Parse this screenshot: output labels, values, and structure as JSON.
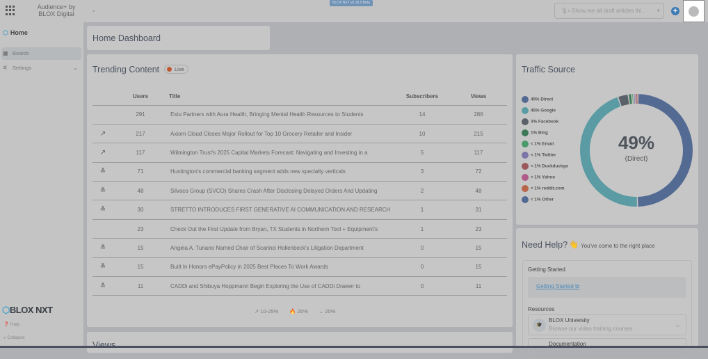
{
  "topbar": {
    "brand": "Audience+ by BLOX Digital",
    "version_badge": "BLOX NXT v0.16.0 Beta",
    "search_placeholder": "Show me all draft articles thi..."
  },
  "sidebar": {
    "home": "Home",
    "items": [
      {
        "label": "Boards",
        "icon": "boards-icon",
        "active": true
      },
      {
        "label": "Settings",
        "icon": "settings-icon"
      }
    ],
    "logo": "BLOX NXT",
    "help": "Help",
    "collapse": "Collapse"
  },
  "page_title": "Home Dashboard",
  "trending": {
    "title": "Trending Content",
    "live": "Live",
    "columns": [
      "",
      "Users",
      "Title",
      "Subscribers",
      "Views"
    ],
    "rows": [
      {
        "trend": "",
        "users": "291",
        "title": "Estu Partners with Aura Health, Bringing Mental Health Resources to Students",
        "subscribers": "14",
        "views": "286"
      },
      {
        "trend": "trending-up",
        "users": "217",
        "title": "Axiom Cloud Closes Major Rollout for Top 10 Grocery Retailer and Insider",
        "subscribers": "10",
        "views": "215"
      },
      {
        "trend": "trending-up",
        "users": "117",
        "title": "Wilmington Trust's 2025 Capital Markets Forecast: Navigating and Investing in a",
        "subscribers": "5",
        "views": "117"
      },
      {
        "trend": "trending-down",
        "users": "71",
        "title": "Huntington's commercial banking segment adds new specialty verticals",
        "subscribers": "3",
        "views": "72"
      },
      {
        "trend": "trending-down",
        "users": "48",
        "title": "Silvaco Group (SVCO) Shares Crash After Disclosing Delayed Orders And Updating",
        "subscribers": "2",
        "views": "48"
      },
      {
        "trend": "trending-down",
        "users": "30",
        "title": "STRETTO INTRODUCES FIRST GENERATIVE AI COMMUNICATION AND RESEARCH",
        "subscribers": "1",
        "views": "31"
      },
      {
        "trend": "",
        "users": "23",
        "title": "Check Out the First Update from Bryan, TX Students in Northern Tool + Equipment's",
        "subscribers": "1",
        "views": "23"
      },
      {
        "trend": "trending-down",
        "users": "15",
        "title": "Angela A. Turiano Named Chair of Scarinci Hollenbeck's Litigation Department",
        "subscribers": "0",
        "views": "15"
      },
      {
        "trend": "trending-down",
        "users": "15",
        "title": "Built In Honors ePayPolicy in 2025 Best Places To Work Awards",
        "subscribers": "0",
        "views": "15"
      },
      {
        "trend": "trending-down",
        "users": "11",
        "title": "CADDi and Shibuya Hoppmann Begin Exploring the Use of CADDi Drawer to",
        "subscribers": "0",
        "views": "11"
      }
    ],
    "legend": [
      "10-25%",
      "25%",
      "25%"
    ]
  },
  "traffic": {
    "title": "Traffic Source",
    "center_value": "49%",
    "center_label": "(Direct)",
    "sources": [
      {
        "label": "49% Direct",
        "value": 49,
        "color": "#536a92"
      },
      {
        "label": "45% Google",
        "value": 45,
        "color": "#5a9ba4"
      },
      {
        "label": "3% Facebook",
        "value": 3,
        "color": "#5b6168"
      },
      {
        "label": "1% Bing",
        "value": 1,
        "color": "#3e7a58"
      },
      {
        "label": "< 1% Email",
        "value": 0.5,
        "color": "#4a9a6e"
      },
      {
        "label": "< 1% Twitter",
        "value": 0.4,
        "color": "#7a76a8"
      },
      {
        "label": "< 1% Duckduckgo",
        "value": 0.3,
        "color": "#9a5a5c"
      },
      {
        "label": "< 1% Yahoo",
        "value": 0.3,
        "color": "#b05a8a"
      },
      {
        "label": "< 1% reddit.com",
        "value": 0.3,
        "color": "#b8654a"
      },
      {
        "label": "< 1% Other",
        "value": 0.2,
        "color": "#536a92"
      }
    ]
  },
  "help": {
    "title": "Need Help?",
    "emoji": "👋",
    "subtitle": "You've come to the right place",
    "getting_started_heading": "Getting Started",
    "getting_started_link": "Getting Started",
    "resources_heading": "Resources",
    "resources": [
      {
        "title": "BLOX University",
        "desc": "Browse our video training courses"
      },
      {
        "title": "Documentation",
        "desc": ""
      }
    ]
  },
  "views_title": "Views"
}
